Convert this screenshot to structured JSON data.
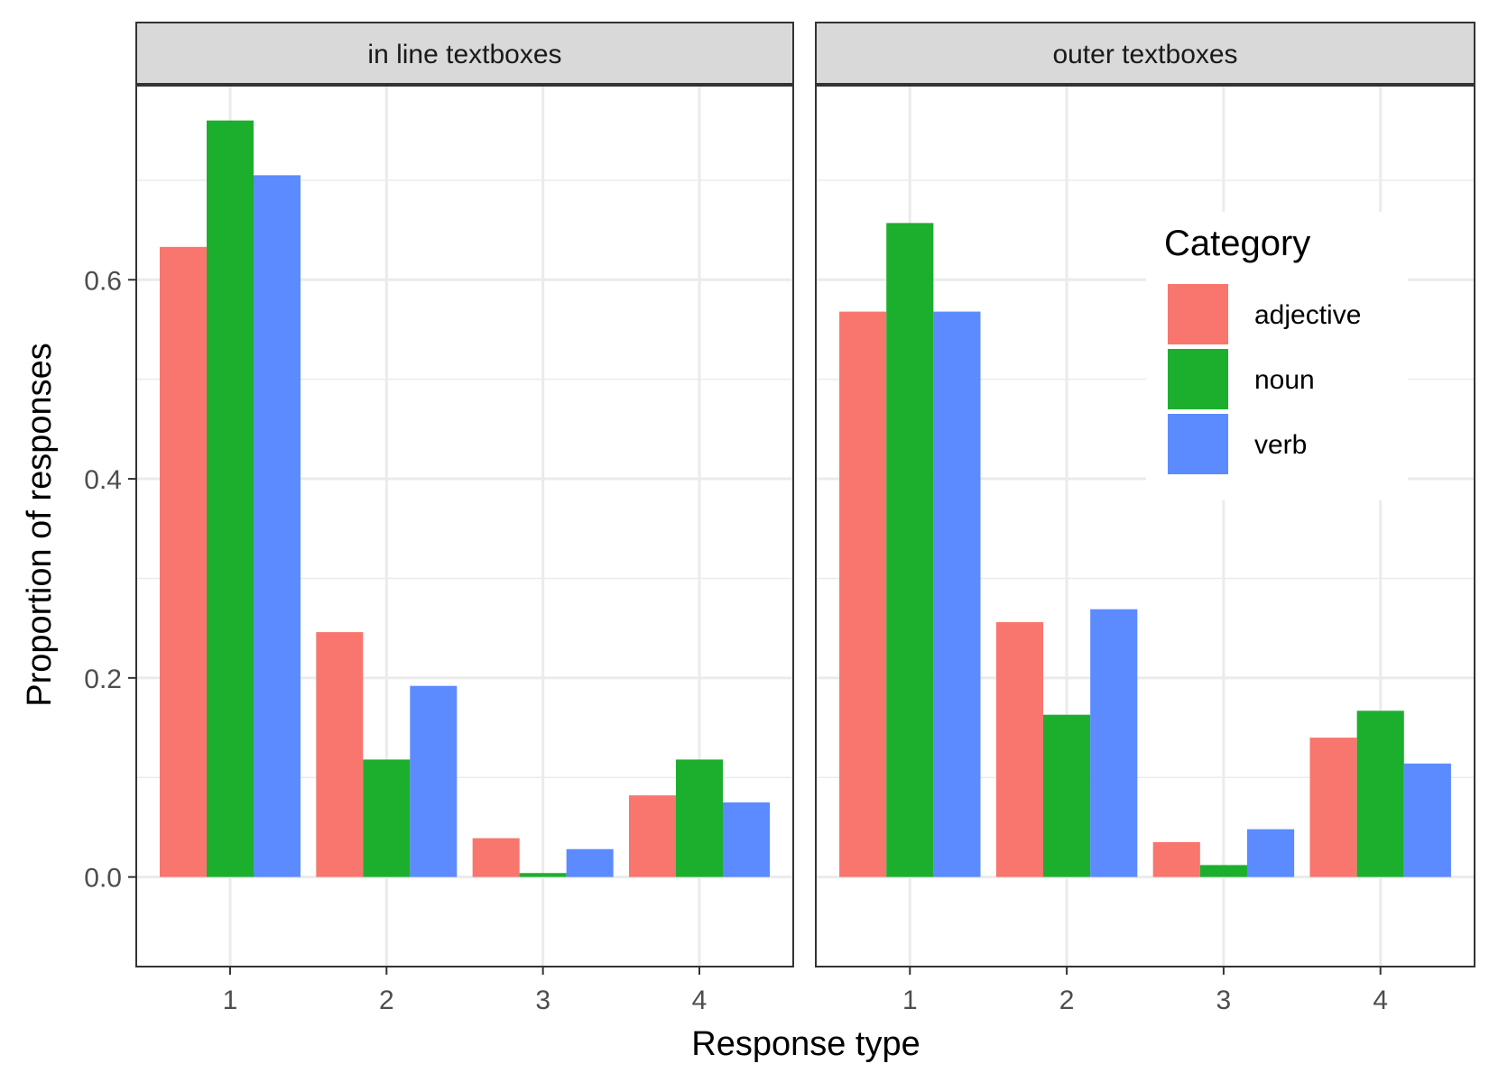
{
  "chart_data": {
    "type": "bar",
    "xlabel": "Response type",
    "ylabel": "Proportion of responses",
    "categories": [
      "1",
      "2",
      "3",
      "4"
    ],
    "ylim": [
      -0.09,
      0.795
    ],
    "y_ticks": [
      0.0,
      0.2,
      0.4,
      0.6
    ],
    "y_tick_labels": [
      "0.0",
      "0.2",
      "0.4",
      "0.6"
    ],
    "grid": true,
    "legend": {
      "title": "Category",
      "placement": "inside top-right of right panel",
      "items": [
        "adjective",
        "noun",
        "verb"
      ]
    },
    "colors": {
      "adjective": "#F8766D",
      "noun": "#1CAF2E",
      "verb": "#5B8BFE"
    },
    "panels": [
      {
        "title": "in line textboxes",
        "series": [
          {
            "name": "adjective",
            "values": [
              0.633,
              0.246,
              0.039,
              0.082
            ]
          },
          {
            "name": "noun",
            "values": [
              0.76,
              0.118,
              0.004,
              0.118
            ]
          },
          {
            "name": "verb",
            "values": [
              0.705,
              0.192,
              0.028,
              0.075
            ]
          }
        ]
      },
      {
        "title": "outer textboxes",
        "series": [
          {
            "name": "adjective",
            "values": [
              0.568,
              0.256,
              0.035,
              0.14
            ]
          },
          {
            "name": "noun",
            "values": [
              0.657,
              0.163,
              0.012,
              0.167
            ]
          },
          {
            "name": "verb",
            "values": [
              0.568,
              0.269,
              0.048,
              0.114
            ]
          }
        ]
      }
    ]
  }
}
